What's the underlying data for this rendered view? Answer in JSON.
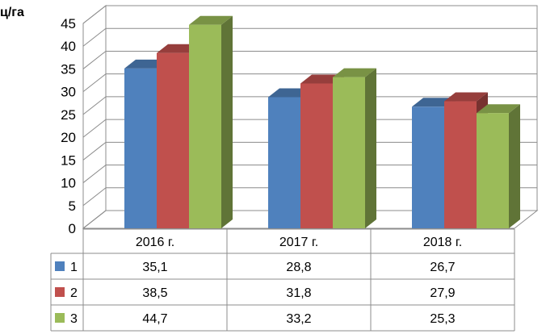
{
  "chart_data": {
    "type": "bar",
    "title": "",
    "xlabel": "",
    "ylabel": "ц/га",
    "ylim": [
      0,
      45
    ],
    "y_ticks": [
      0,
      5,
      10,
      15,
      20,
      25,
      30,
      35,
      40,
      45
    ],
    "grid": true,
    "style": "3d-clustered-column-with-data-table",
    "categories": [
      "2016 г.",
      "2017 г.",
      "2018 г."
    ],
    "series": [
      {
        "name": "1",
        "color": "#4f81bd",
        "values": [
          35.1,
          28.8,
          26.7
        ],
        "labels": [
          "35,1",
          "28,8",
          "26,7"
        ]
      },
      {
        "name": "2",
        "color": "#c0504d",
        "values": [
          38.5,
          31.8,
          27.9
        ],
        "labels": [
          "38,5",
          "31,8",
          "27,9"
        ]
      },
      {
        "name": "3",
        "color": "#9bbb59",
        "values": [
          44.7,
          33.2,
          25.3
        ],
        "labels": [
          "44,7",
          "33,2",
          "25,3"
        ]
      }
    ]
  }
}
